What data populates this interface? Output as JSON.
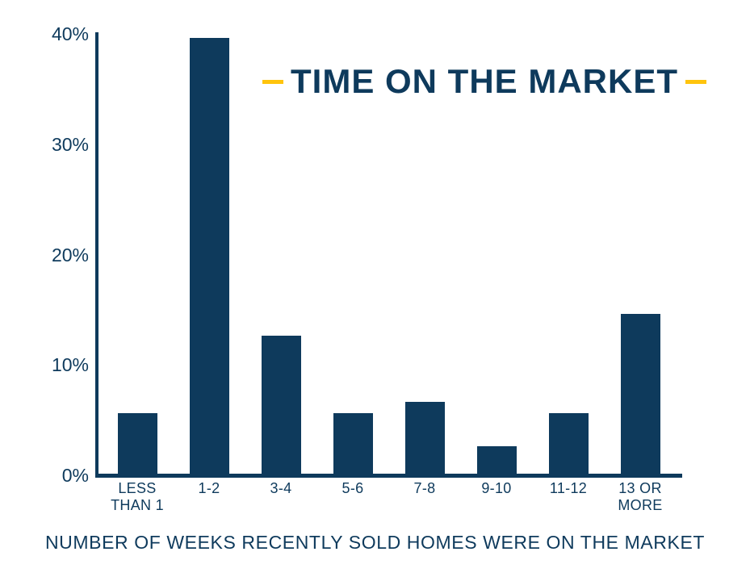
{
  "colors": {
    "navy": "#0E3A5C",
    "yellow": "#FFC40C",
    "background": "#FFFFFF"
  },
  "title": {
    "text": "TIME ON THE MARKET",
    "left_dash": "yellow-dash",
    "right_dash": "yellow-dash"
  },
  "caption": "NUMBER OF WEEKS RECENTLY SOLD HOMES WERE ON THE MARKET",
  "chart_data": {
    "type": "bar",
    "title": "TIME ON THE MARKET",
    "categories": [
      "LESS THAN 1",
      "1-2",
      "3-4",
      "5-6",
      "7-8",
      "9-10",
      "11-12",
      "13 OR MORE"
    ],
    "values": [
      5.5,
      39.5,
      12.5,
      5.5,
      6.5,
      2.5,
      5.5,
      14.5
    ],
    "xlabel": "NUMBER OF WEEKS RECENTLY SOLD HOMES WERE ON THE MARKET",
    "ylabel": "",
    "ylim": [
      0,
      40
    ],
    "yticks": [
      0,
      10,
      20,
      30,
      40
    ],
    "ytick_labels": [
      "0%",
      "10%",
      "20%",
      "30%",
      "40%"
    ],
    "bar_color": "#0E3A5C",
    "axis_color": "#0E3A5C",
    "grid": false,
    "legend": false
  },
  "x_axis_display_lines": [
    [
      "LESS",
      "THAN 1"
    ],
    [
      "1-2"
    ],
    [
      "3-4"
    ],
    [
      "5-6"
    ],
    [
      "7-8"
    ],
    [
      "9-10"
    ],
    [
      "11-12"
    ],
    [
      "13 OR",
      "MORE"
    ]
  ]
}
